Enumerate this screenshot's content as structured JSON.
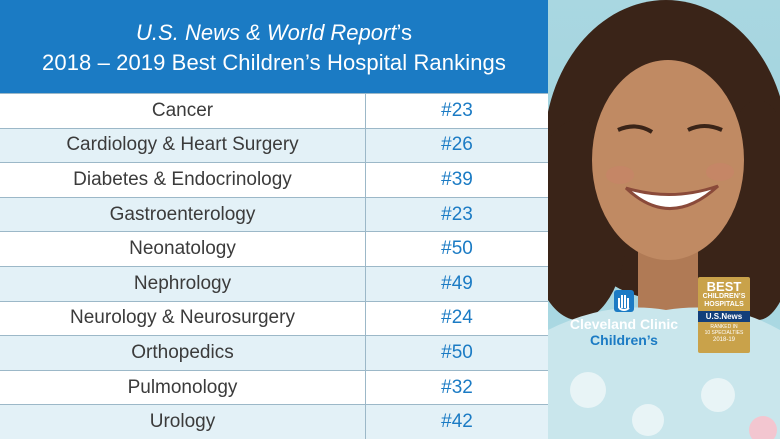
{
  "header": {
    "publication": "U.S. News & World Report",
    "possessive": "’s",
    "title": "2018 – 2019 Best Children’s Hospital Rankings"
  },
  "rankings": [
    {
      "specialty": "Cancer",
      "rank": "#23"
    },
    {
      "specialty": "Cardiology & Heart Surgery",
      "rank": "#26"
    },
    {
      "specialty": "Diabetes & Endocrinology",
      "rank": "#39"
    },
    {
      "specialty": "Gastroenterology",
      "rank": "#23"
    },
    {
      "specialty": "Neonatology",
      "rank": "#50"
    },
    {
      "specialty": "Nephrology",
      "rank": "#49"
    },
    {
      "specialty": "Neurology & Neurosurgery",
      "rank": "#24"
    },
    {
      "specialty": "Orthopedics",
      "rank": "#50"
    },
    {
      "specialty": "Pulmonology",
      "rank": "#32"
    },
    {
      "specialty": "Urology",
      "rank": "#42"
    }
  ],
  "logo": {
    "line1": "Cleveland Clinic",
    "line2": "Children’s"
  },
  "badge": {
    "line1": "BEST",
    "line2": "CHILDREN’S",
    "line3": "HOSPITALS",
    "brand": "U.S.News",
    "line4": "RANKED IN",
    "line5": "10 SPECIALTIES",
    "line6": "2018-19"
  },
  "colors": {
    "header_blue": "#1b7bc4",
    "row_alt": "#e3f1f7",
    "rank_text": "#1b7bc4",
    "badge_gold": "#c9a24a"
  }
}
